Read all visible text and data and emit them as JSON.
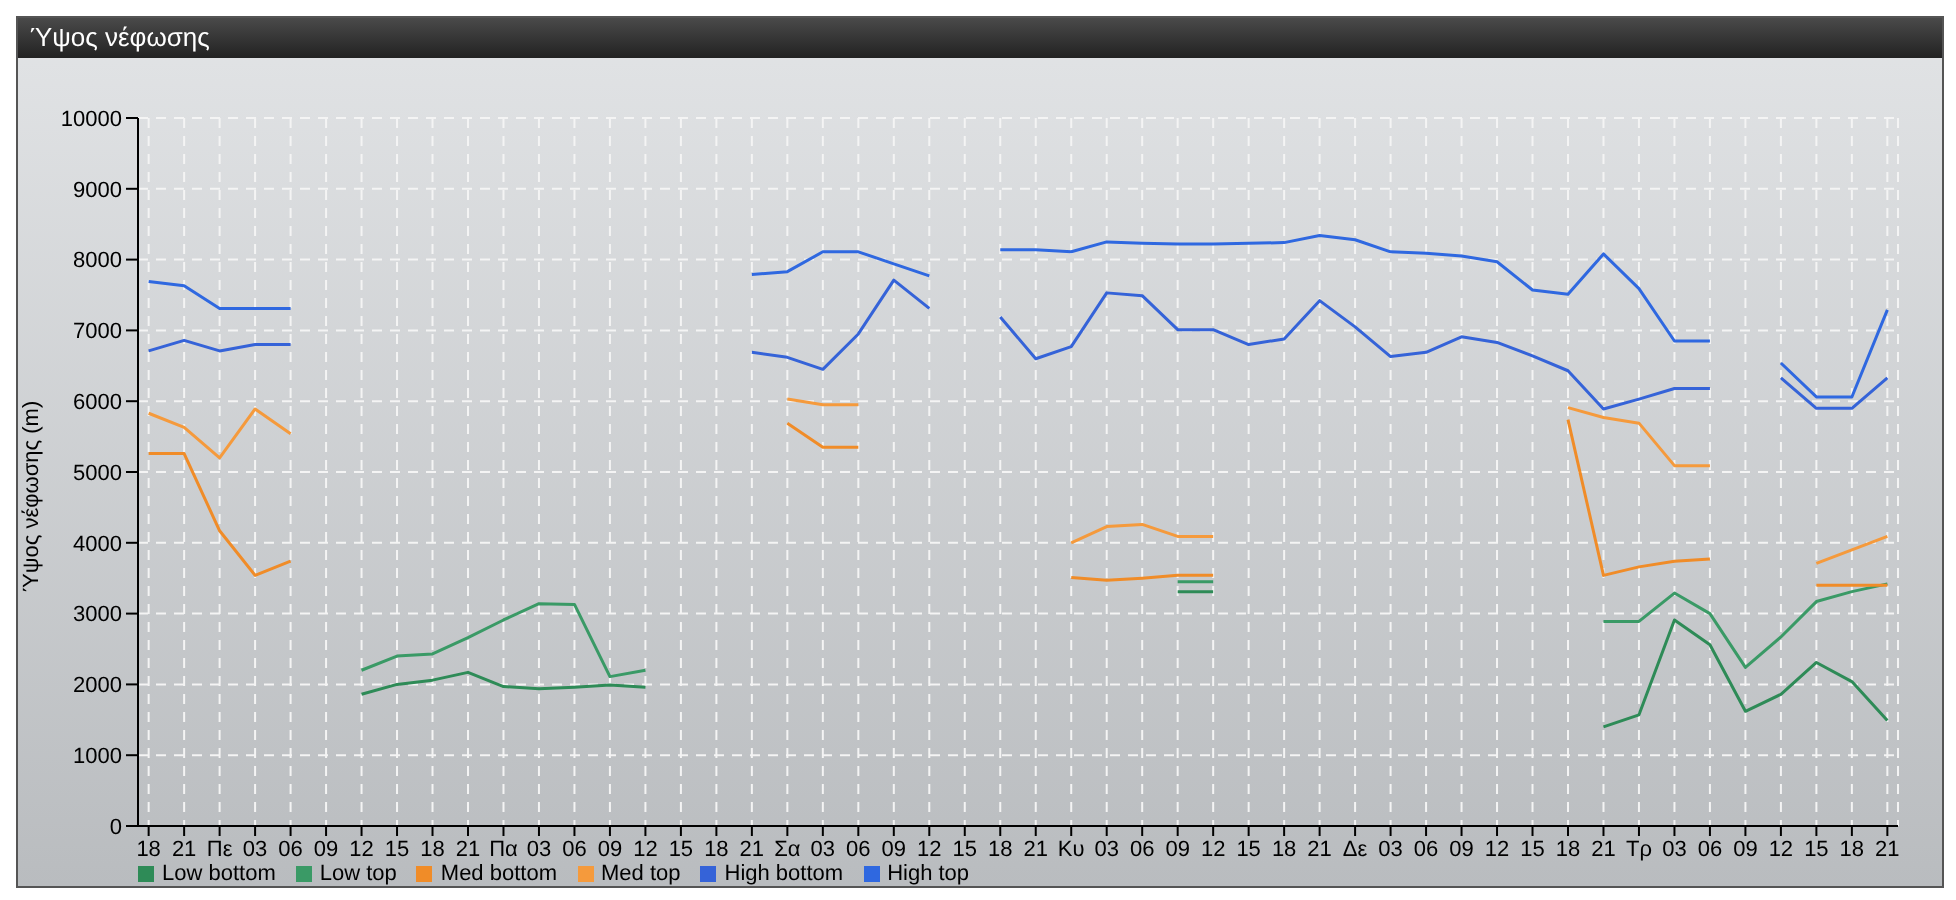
{
  "chart_data": {
    "type": "line",
    "title": "Ύψος νέφωσης",
    "ylabel": "Ύψος νέφωσης (m)",
    "categories": [
      "18",
      "21",
      "Πε",
      "03",
      "06",
      "09",
      "12",
      "15",
      "18",
      "21",
      "Πα",
      "03",
      "06",
      "09",
      "12",
      "15",
      "18",
      "21",
      "Σα",
      "03",
      "06",
      "09",
      "12",
      "15",
      "18",
      "21",
      "Κυ",
      "03",
      "06",
      "09",
      "12",
      "15",
      "18",
      "21",
      "Δε",
      "03",
      "06",
      "09",
      "12",
      "15",
      "18",
      "21",
      "Τρ",
      "03",
      "06",
      "09",
      "12",
      "15",
      "18",
      "21"
    ],
    "ylim": [
      0,
      10000
    ],
    "yticks": [
      0,
      1000,
      2000,
      3000,
      4000,
      5000,
      6000,
      7000,
      8000,
      9000,
      10000
    ],
    "grid": true,
    "legend": "bottom left",
    "marker": "none",
    "line_style": "solid",
    "series": [
      {
        "name": "Low bottom",
        "color": "#2e8b57",
        "values": [
          null,
          null,
          null,
          null,
          null,
          null,
          1860,
          2000,
          2060,
          2170,
          1970,
          1940,
          1960,
          1990,
          1960,
          null,
          null,
          null,
          null,
          null,
          null,
          null,
          null,
          null,
          null,
          null,
          null,
          null,
          null,
          3310,
          3310,
          null,
          null,
          null,
          null,
          null,
          null,
          null,
          null,
          null,
          null,
          1400,
          1570,
          2910,
          2560,
          1620,
          1860,
          2310,
          2040,
          1490
        ]
      },
      {
        "name": "Low top",
        "color": "#3a9a66",
        "values": [
          null,
          null,
          null,
          null,
          null,
          null,
          2200,
          2400,
          2430,
          2660,
          2910,
          3140,
          3130,
          2110,
          2200,
          null,
          null,
          null,
          null,
          null,
          null,
          null,
          null,
          null,
          null,
          null,
          null,
          null,
          null,
          3450,
          3450,
          null,
          null,
          null,
          null,
          null,
          null,
          null,
          null,
          null,
          null,
          2890,
          2890,
          3290,
          3000,
          2240,
          2670,
          3170,
          3310,
          3420
        ]
      },
      {
        "name": "Med bottom",
        "color": "#f08c28",
        "values": [
          5260,
          5260,
          4170,
          3540,
          3740,
          null,
          null,
          null,
          null,
          null,
          null,
          null,
          null,
          null,
          null,
          null,
          null,
          null,
          5690,
          5350,
          5350,
          null,
          null,
          null,
          null,
          null,
          3510,
          3470,
          3500,
          3540,
          3540,
          null,
          null,
          null,
          null,
          null,
          null,
          null,
          null,
          null,
          5740,
          3540,
          3660,
          3740,
          3770,
          null,
          null,
          3400,
          3400,
          3400
        ]
      },
      {
        "name": "Med top",
        "color": "#f59a3c",
        "values": [
          5830,
          5630,
          5200,
          5890,
          5540,
          null,
          null,
          null,
          null,
          null,
          null,
          null,
          null,
          null,
          null,
          null,
          null,
          null,
          6030,
          5950,
          5950,
          null,
          null,
          null,
          null,
          null,
          4000,
          4230,
          4260,
          4090,
          4090,
          null,
          null,
          null,
          null,
          null,
          null,
          null,
          null,
          null,
          5910,
          5770,
          5690,
          5090,
          5090,
          null,
          null,
          3710,
          3900,
          4090
        ]
      },
      {
        "name": "High bottom",
        "color": "#3563d8",
        "values": [
          6710,
          6860,
          6710,
          6800,
          6800,
          null,
          null,
          null,
          null,
          null,
          null,
          null,
          null,
          null,
          null,
          null,
          null,
          6690,
          6620,
          6450,
          6950,
          7710,
          7310,
          null,
          7190,
          6600,
          6770,
          7530,
          7490,
          7010,
          7010,
          6800,
          6880,
          7420,
          7050,
          6630,
          6690,
          6910,
          6830,
          6640,
          6430,
          5890,
          6030,
          6180,
          6180,
          null,
          6330,
          5900,
          5900,
          6330
        ]
      },
      {
        "name": "High top",
        "color": "#2f68e0",
        "values": [
          7690,
          7630,
          7310,
          7310,
          7310,
          null,
          null,
          null,
          null,
          null,
          null,
          null,
          null,
          null,
          null,
          null,
          null,
          7790,
          7830,
          8110,
          8110,
          7940,
          7770,
          null,
          8140,
          8140,
          8110,
          8250,
          8230,
          8220,
          8220,
          8230,
          8240,
          8340,
          8280,
          8110,
          8090,
          8050,
          7970,
          7570,
          7510,
          8080,
          7590,
          6850,
          6850,
          null,
          6540,
          6060,
          6060,
          7290
        ]
      }
    ]
  }
}
